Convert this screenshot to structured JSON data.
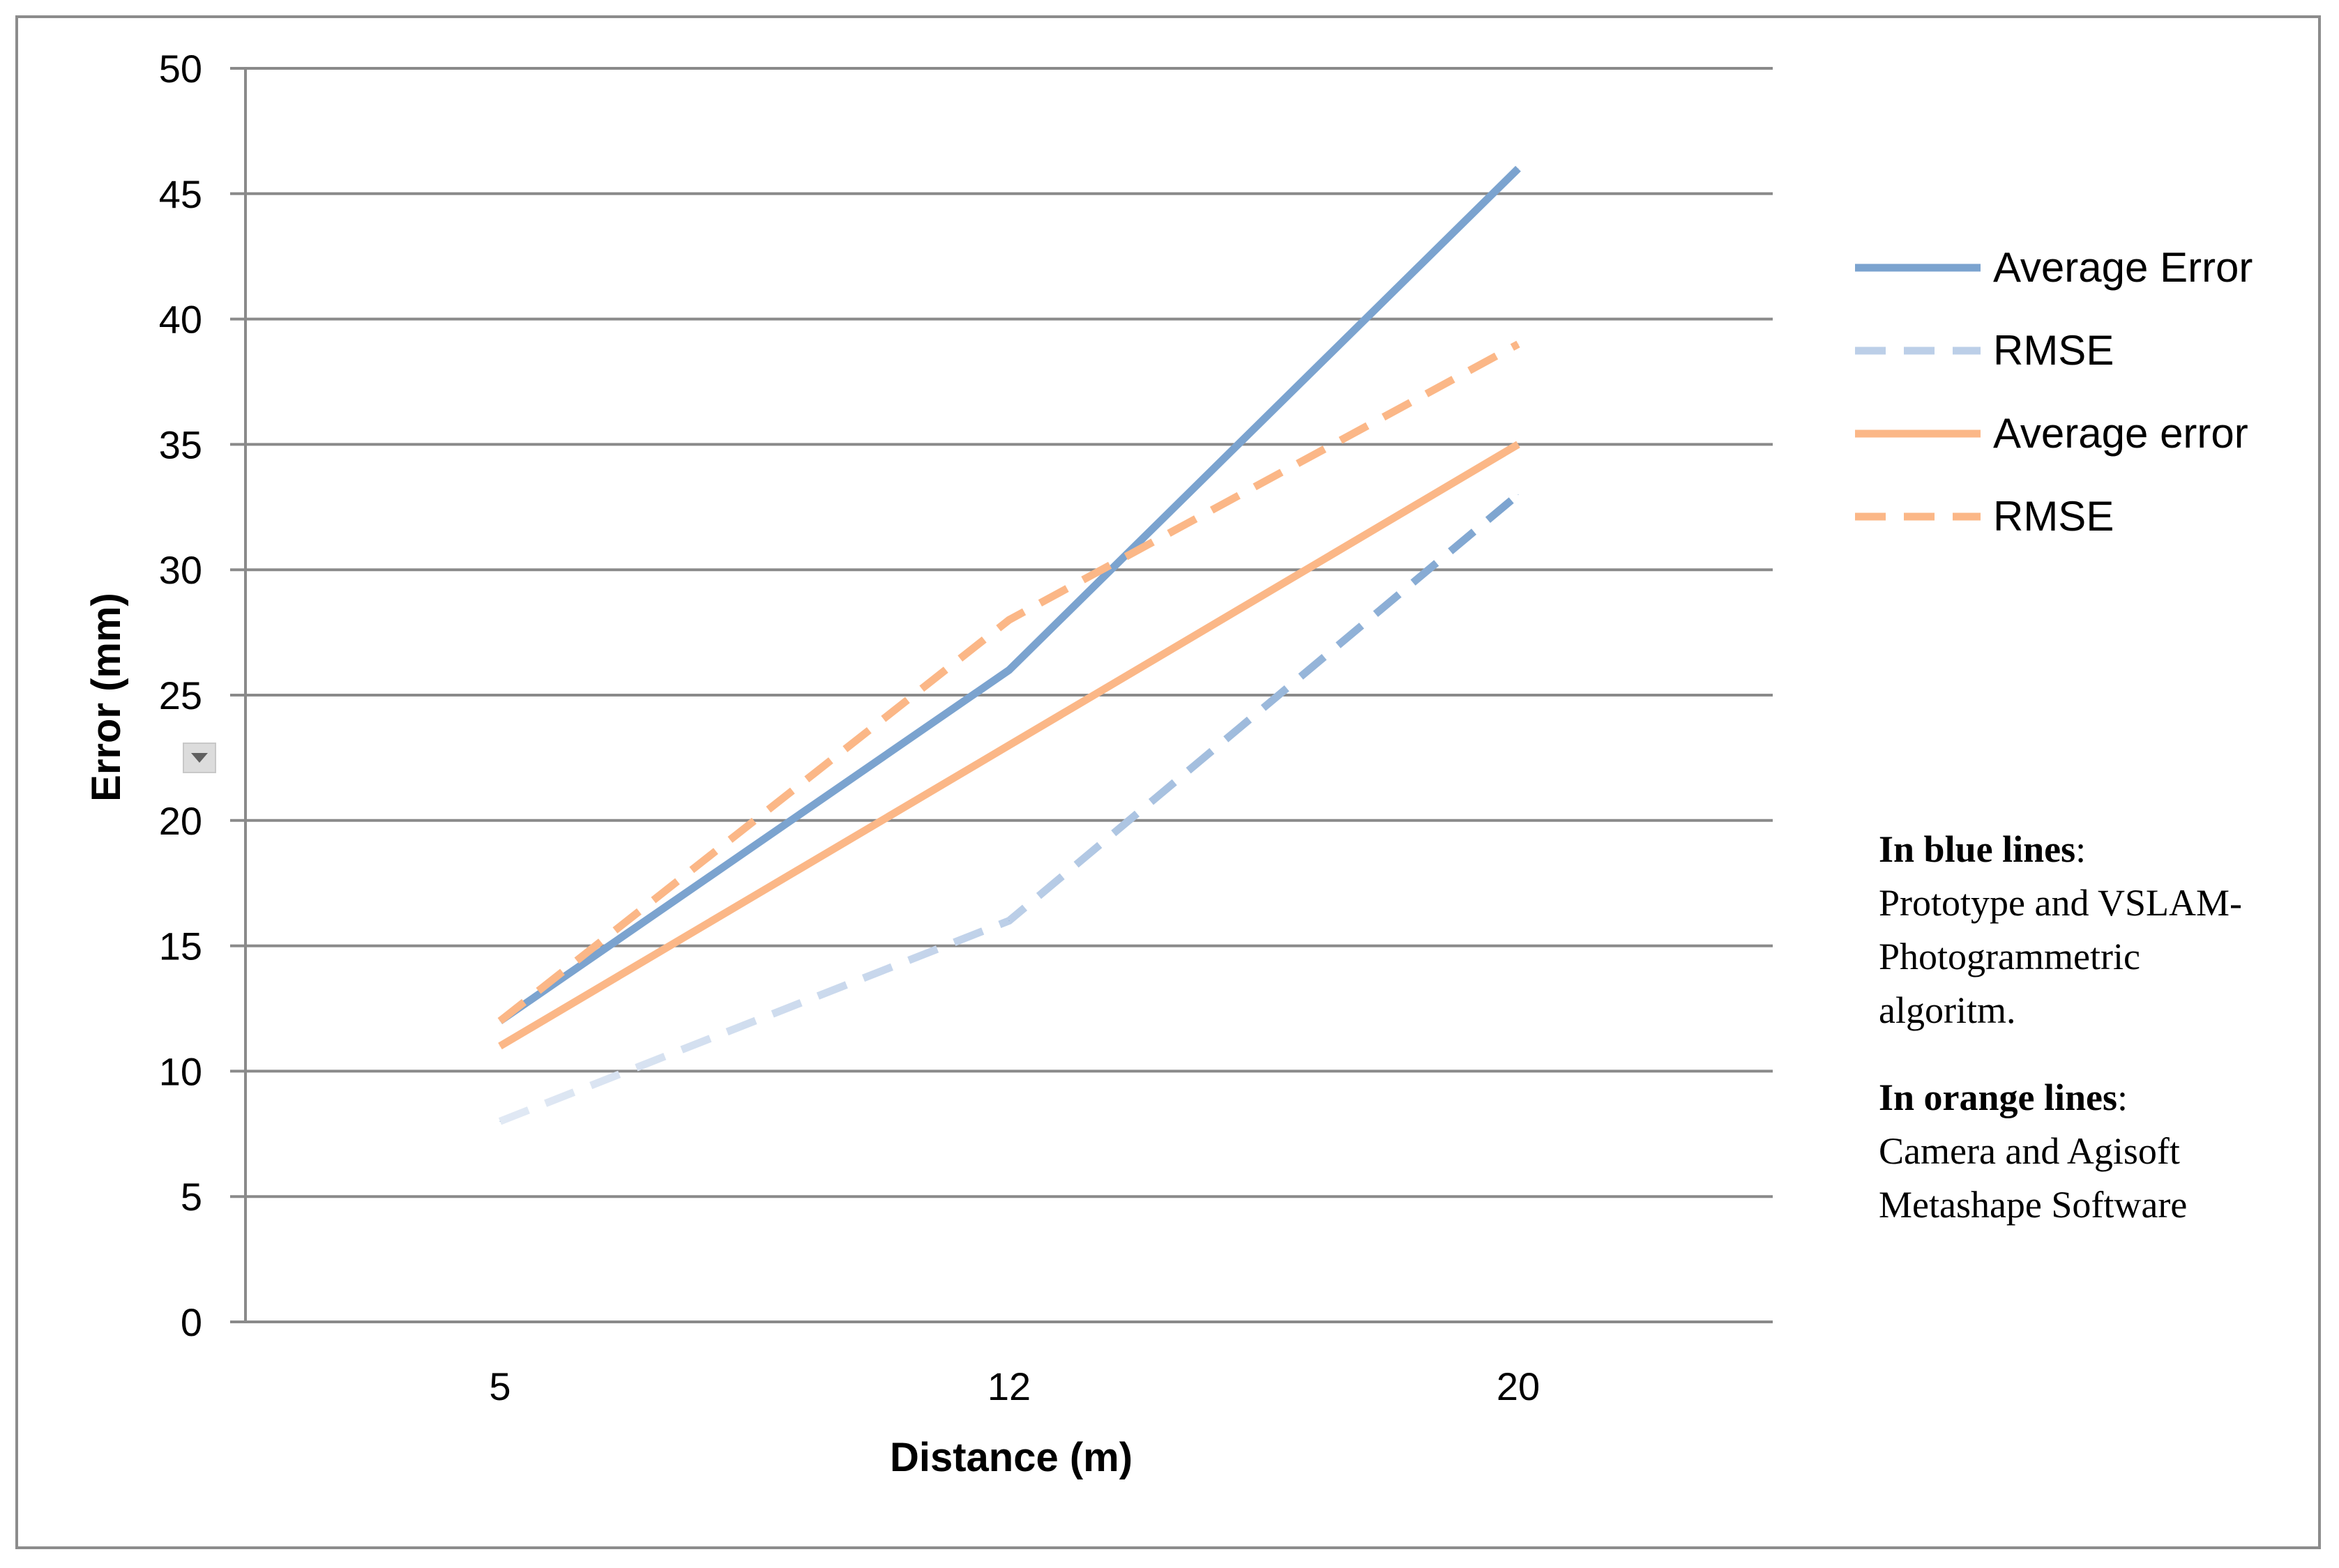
{
  "chart_data": {
    "type": "line",
    "title": "",
    "xlabel": "Distance (m)",
    "ylabel": "Error (mm)",
    "categories": [
      "5",
      "12",
      "20"
    ],
    "ylim": [
      0,
      50
    ],
    "yticks": [
      0,
      5,
      10,
      15,
      20,
      25,
      30,
      35,
      40,
      45,
      50
    ],
    "grid": true,
    "legend_position": "right",
    "series": [
      {
        "name": "Average Error",
        "values": [
          12,
          26,
          46
        ],
        "color": "#7ba3cf",
        "dash": "solid"
      },
      {
        "name": "RMSE",
        "values": [
          8,
          16,
          33
        ],
        "color": "#7ba3cf",
        "dash": "dashed",
        "fade": true
      },
      {
        "name": "Average error",
        "values": [
          11,
          23,
          35
        ],
        "color": "#fbb787",
        "dash": "solid"
      },
      {
        "name": "RMSE",
        "values": [
          12,
          28,
          39
        ],
        "color": "#fbb787",
        "dash": "dashed"
      }
    ]
  },
  "note": {
    "blue_heading": "In blue lines",
    "blue_colon": ":",
    "blue_lines": [
      "Prototype and VSLAM-",
      "Photogrammetric",
      "algoritm."
    ],
    "orange_heading": "In orange lines",
    "orange_colon": ":",
    "orange_lines": [
      "Camera and Agisoft",
      "Metashape Software"
    ]
  },
  "icons": {
    "dropdown": "chevron-down-icon"
  }
}
